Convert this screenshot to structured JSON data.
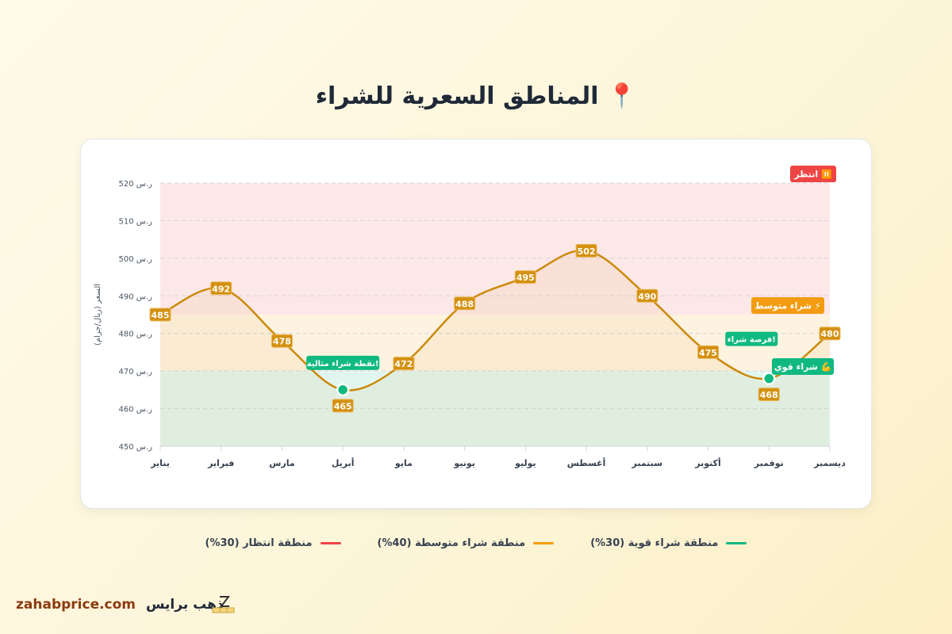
{
  "title": "المناطق السعرية للشراء",
  "title_icon": "round-pushpin",
  "chart_data": {
    "type": "line",
    "categories": [
      "يناير",
      "فبراير",
      "مارس",
      "أبريل",
      "مايو",
      "يونيو",
      "يوليو",
      "أغسطس",
      "سبتمبر",
      "أكتوبر",
      "نوفمبر",
      "ديسمبر"
    ],
    "values": [
      485,
      492,
      478,
      465,
      472,
      488,
      495,
      502,
      490,
      475,
      468,
      480
    ],
    "data_labels": [
      "485",
      "492",
      "478",
      "465",
      "472",
      "488",
      "495",
      "502",
      "490",
      "475",
      "468",
      "480"
    ],
    "ylabel": "السعر (ريال/جرام)",
    "ylim": [
      450,
      520
    ],
    "yticks": [
      450,
      460,
      470,
      480,
      490,
      500,
      510,
      520
    ],
    "ytick_suffix": "ر.س",
    "grid": true,
    "line_color": "#cc8a0a",
    "zones": [
      {
        "name": "منطقة شراء قوية (30%)",
        "from": 450,
        "to": 470,
        "color": "#10b981",
        "label": "شراء قوي",
        "icon": "💪"
      },
      {
        "name": "منطقة شراء متوسطة (40%)",
        "from": 470,
        "to": 485,
        "color": "#f59e0b",
        "label": "شراء متوسط",
        "icon": "⚡"
      },
      {
        "name": "منطقة انتظار (30%)",
        "from": 485,
        "to": 520,
        "color": "#ef4444",
        "label": "انتظر",
        "icon": "⏸️"
      }
    ],
    "highlights": [
      {
        "index": 3,
        "text": "!نقطة شراء مثالية"
      },
      {
        "index": 10,
        "text": "!فرصة شراء"
      }
    ],
    "legend_position": "bottom"
  },
  "footer": {
    "url": "zahabprice.com",
    "brand": "ذهب برايس"
  }
}
